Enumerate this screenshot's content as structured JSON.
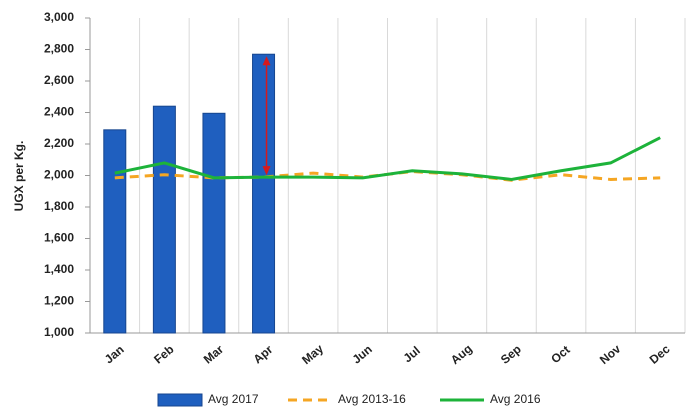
{
  "chart_data": {
    "type": "bar_line",
    "y_label": "UGX per Kg.",
    "categories": [
      "Jan",
      "Feb",
      "Mar",
      "Apr",
      "May",
      "Jun",
      "Jul",
      "Aug",
      "Sep",
      "Oct",
      "Nov",
      "Dec"
    ],
    "series": [
      {
        "name": "Avg 2017",
        "kind": "bar",
        "color": "#1f5fbf",
        "values": [
          2290,
          2440,
          2395,
          2770,
          null,
          null,
          null,
          null,
          null,
          null,
          null,
          null
        ]
      },
      {
        "name": "Avg 2013-16",
        "kind": "dashed-line",
        "color": "#f5a623",
        "values": [
          1985,
          2005,
          1985,
          1990,
          2015,
          1990,
          2025,
          2005,
          1970,
          2005,
          1975,
          1985
        ]
      },
      {
        "name": "Avg 2016",
        "kind": "line",
        "color": "#1db33a",
        "values": [
          2015,
          2080,
          1985,
          1990,
          1990,
          1985,
          2030,
          2010,
          1975,
          2030,
          2080,
          2240
        ]
      }
    ],
    "ylim": [
      1000,
      3000
    ],
    "yticks": [
      {
        "value": 1000,
        "label": "1,000"
      },
      {
        "value": 1200,
        "label": "1,200"
      },
      {
        "value": 1400,
        "label": "1,400"
      },
      {
        "value": 1600,
        "label": "1,600"
      },
      {
        "value": 1800,
        "label": "1,800"
      },
      {
        "value": 2000,
        "label": "2,000"
      },
      {
        "value": 2200,
        "label": "2,200"
      },
      {
        "value": 2400,
        "label": "2,400"
      },
      {
        "value": 2600,
        "label": "2,600"
      },
      {
        "value": 2800,
        "label": "2,800"
      },
      {
        "value": 3000,
        "label": "3,000"
      }
    ],
    "arrow_color": "#d7191c"
  }
}
